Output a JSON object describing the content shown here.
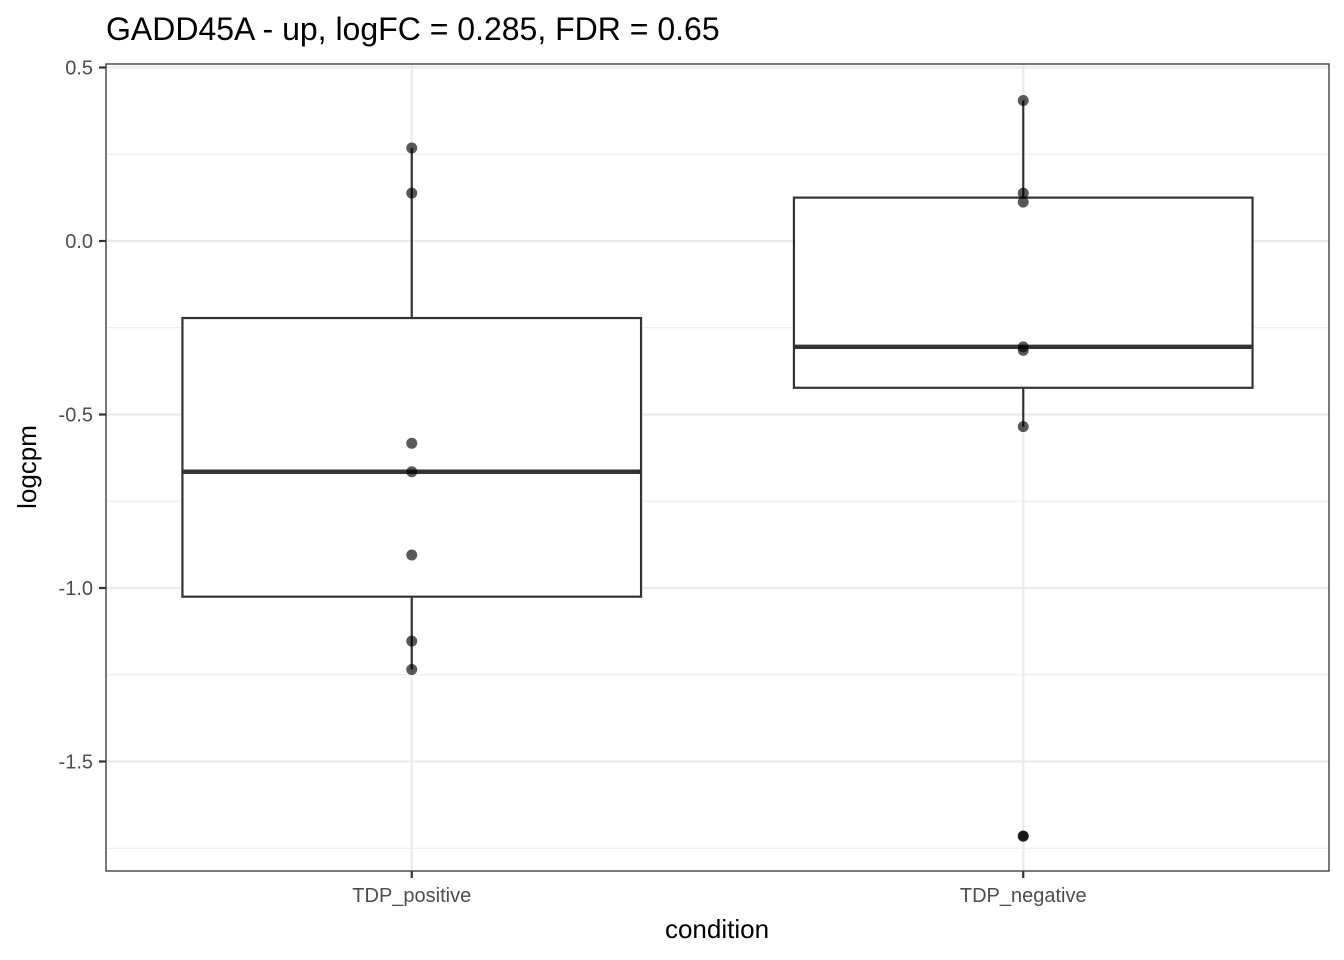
{
  "chart_data": {
    "type": "box",
    "title": "GADD45A - up, logFC = 0.285, FDR = 0.65",
    "xlabel": "condition",
    "ylabel": "logcpm",
    "categories": [
      "TDP_positive",
      "TDP_negative"
    ],
    "ylim": [
      -1.75,
      0.51
    ],
    "yticks": [
      0.5,
      0.0,
      -0.5,
      -1.0,
      -1.5
    ],
    "ytick_labels": [
      "0.5",
      "0.0",
      "-0.5",
      "-1.0",
      "-1.5"
    ],
    "grid": true,
    "boxes": [
      {
        "category": "TDP_positive",
        "min": -1.235,
        "q1": -1.025,
        "median": -0.665,
        "q3": -0.222,
        "max": 0.268
      },
      {
        "category": "TDP_negative",
        "min": -0.535,
        "q1": -0.423,
        "median": -0.305,
        "q3": 0.125,
        "max": 0.405
      }
    ],
    "points": [
      {
        "category": "TDP_positive",
        "values": [
          0.268,
          0.138,
          -0.583,
          -0.665,
          -0.905,
          -1.153,
          -1.235
        ]
      },
      {
        "category": "TDP_negative",
        "values": [
          0.405,
          0.138,
          0.112,
          -0.305,
          -0.315,
          -0.535
        ]
      }
    ],
    "outliers": [
      {
        "category": "TDP_negative",
        "value": -1.715
      }
    ]
  }
}
